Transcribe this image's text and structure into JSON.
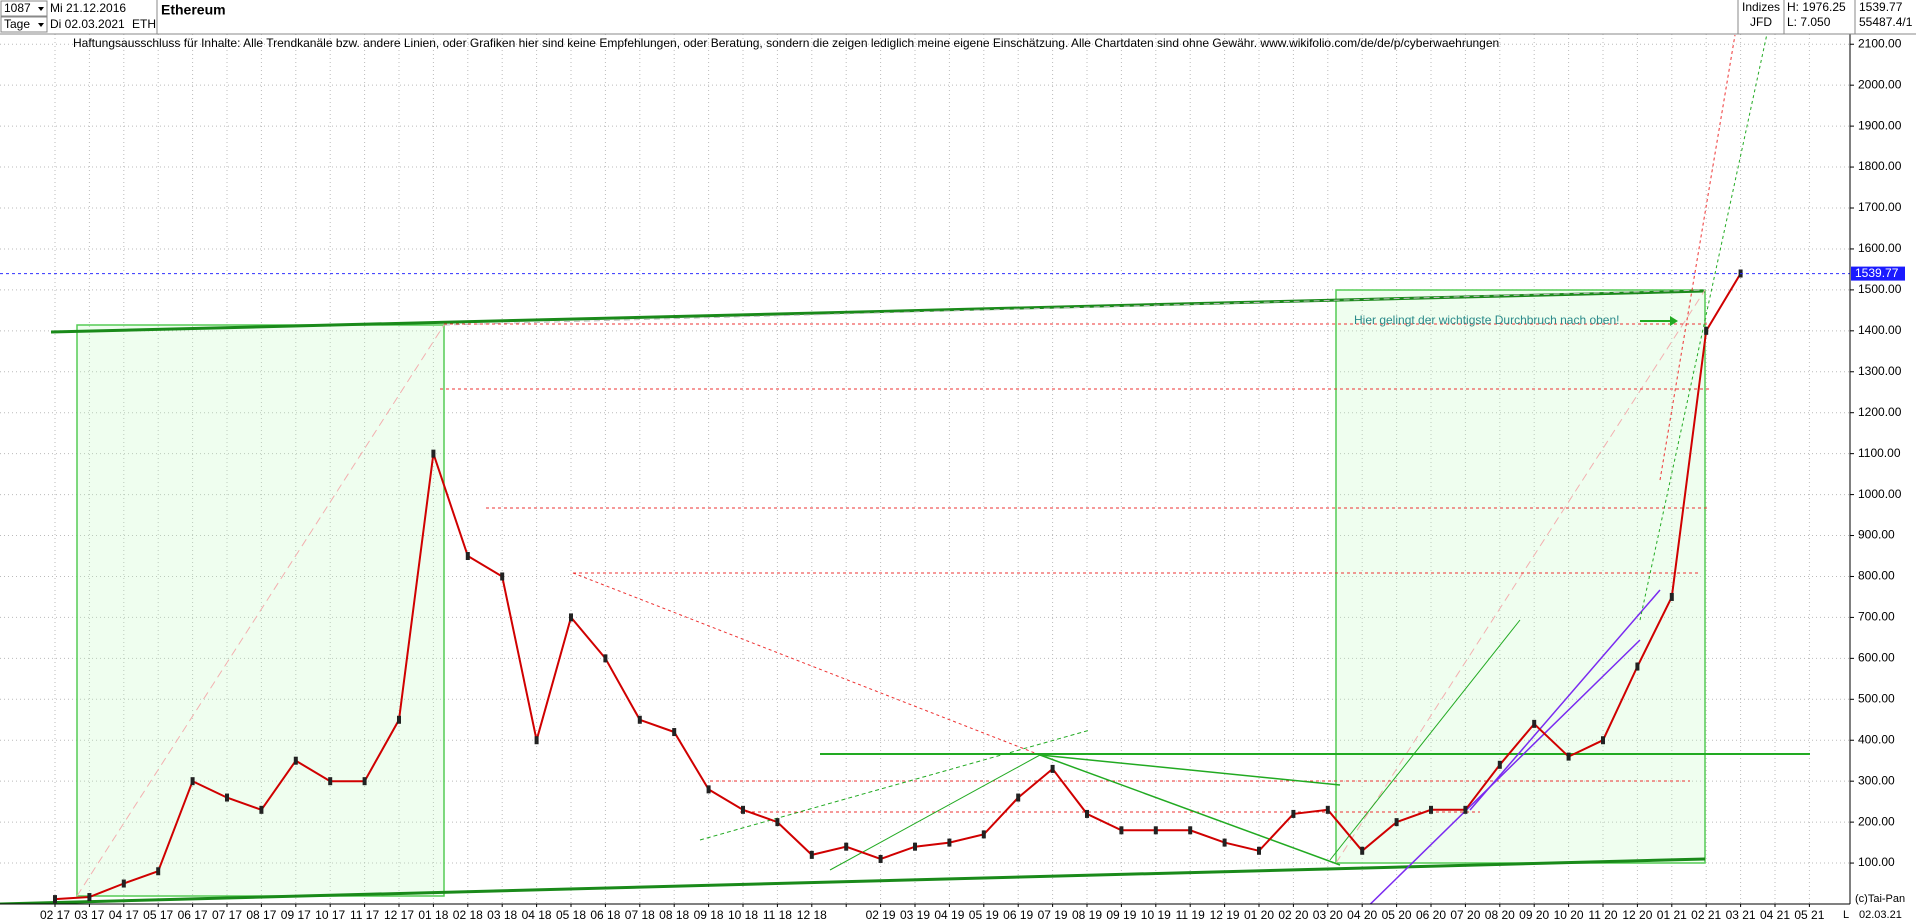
{
  "header": {
    "count": "1087",
    "period": "Tage",
    "date_from": "Mi 21.12.2016",
    "date_to": "Di 02.03.2021",
    "symbol": "ETH",
    "disclaimer": "Haftungsausschluss für Inhalte: Alle Trendkanäle bzw. andere Linien, oder Grafiken hier sind keine Empfehlungen, oder Beratung, sondern die zeigen lediglich meine eigene Einschätzung. Alle Chartdaten sind ohne Gewähr.  www.wikifolio.com/de/de/p/cyberwaehrungen",
    "source": "Indizes",
    "exchange": "JFD",
    "high": "H: 1976.25",
    "low": "L: 7.050",
    "volume": "55487.4/1",
    "copyright": "(c)Tai-Pan",
    "scale_mode": "L",
    "date_last": "02.03.21"
  },
  "chart_data": {
    "type": "line",
    "title": "Ethereum",
    "annotation": "Hier gelingt der wichtigste Durchbruch nach oben!",
    "current_value": 1539.77,
    "categories": [
      "02 17",
      "03 17",
      "04 17",
      "05 17",
      "06 17",
      "07 17",
      "08 17",
      "09 17",
      "10 17",
      "11 17",
      "12 17",
      "01 18",
      "02 18",
      "03 18",
      "04 18",
      "05 18",
      "06 18",
      "07 18",
      "08 18",
      "09 18",
      "10 18",
      "11 18",
      "12 18",
      null,
      "02 19",
      "03 19",
      "04 19",
      "05 19",
      "06 19",
      "07 19",
      "08 19",
      "09 19",
      "10 19",
      "11 19",
      "12 19",
      "01 20",
      "02 20",
      "03 20",
      "04 20",
      "05 20",
      "06 20",
      "07 20",
      "08 20",
      "09 20",
      "10 20",
      "11 20",
      "12 20",
      "01 21",
      "02 21",
      "03 21",
      "04 21",
      "05 21"
    ],
    "series": [
      {
        "name": "ETH",
        "color": "#d00000",
        "values": [
          12,
          17,
          50,
          80,
          300,
          260,
          230,
          350,
          300,
          300,
          450,
          1100,
          850,
          800,
          400,
          700,
          600,
          450,
          420,
          280,
          230,
          200,
          120,
          140,
          110,
          140,
          150,
          170,
          260,
          330,
          220,
          180,
          180,
          180,
          150,
          130,
          220,
          230,
          130,
          200,
          230,
          230,
          340,
          440,
          360,
          400,
          580,
          750,
          1400,
          1540,
          null,
          null
        ]
      }
    ],
    "ylim": [
      0,
      2125
    ],
    "yticks": [
      {
        "value": 100,
        "label": "100.00"
      },
      {
        "value": 200,
        "label": "200.00"
      },
      {
        "value": 300,
        "label": "300.00"
      },
      {
        "value": 400,
        "label": "400.00"
      },
      {
        "value": 500,
        "label": "500.00"
      },
      {
        "value": 600,
        "label": "600.00"
      },
      {
        "value": 700,
        "label": "700.00"
      },
      {
        "value": 800,
        "label": "800.00"
      },
      {
        "value": 900,
        "label": "900.00"
      },
      {
        "value": 1000,
        "label": "1000.00"
      },
      {
        "value": 1100,
        "label": "1100.00"
      },
      {
        "value": 1200,
        "label": "1200.00"
      },
      {
        "value": 1300,
        "label": "1300.00"
      },
      {
        "value": 1400,
        "label": "1400.00"
      },
      {
        "value": 1500,
        "label": "1500.00"
      },
      {
        "value": 1600,
        "label": "1600.00"
      },
      {
        "value": 1700,
        "label": "1700.00"
      },
      {
        "value": 1800,
        "label": "1800.00"
      },
      {
        "value": 1900,
        "label": "1900.00"
      },
      {
        "value": 2000,
        "label": "2000.00"
      },
      {
        "value": 2100,
        "label": "2100.00"
      }
    ],
    "grid": true
  }
}
